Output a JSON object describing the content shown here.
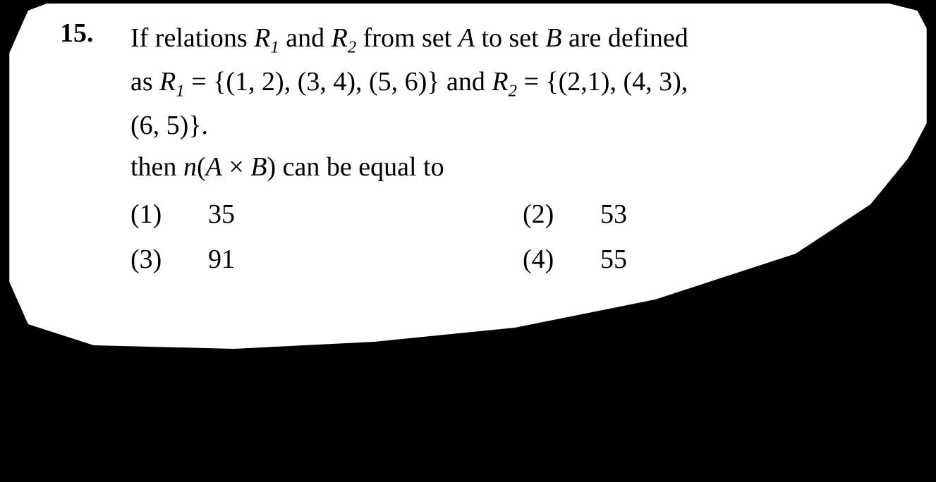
{
  "question": {
    "number": "15.",
    "line1_prefix": "If relations ",
    "r1": "R",
    "r1_sub": "1",
    "line1_and": " and ",
    "r2": "R",
    "r2_sub": "2",
    "line1_mid": " from set ",
    "setA": "A",
    "line1_toset": " to set ",
    "setB": "B",
    "line1_suffix": " are defined",
    "line2_as": "as ",
    "line2_r1eq": " = {(1, 2), (3, 4), (5, 6)} and ",
    "line2_r2eq": " = {(2,1), (4, 3),",
    "line3": "(6, 5)}.",
    "line4_then": "then ",
    "line4_n": "n",
    "line4_open": "(",
    "line4_A": "A",
    "line4_times": " × ",
    "line4_B": "B",
    "line4_close": ") can be equal to"
  },
  "options": [
    {
      "num": "(1)",
      "val": "35"
    },
    {
      "num": "(2)",
      "val": "53"
    },
    {
      "num": "(3)",
      "val": "91"
    },
    {
      "num": "(4)",
      "val": "55"
    }
  ],
  "style": {
    "background": "#000000",
    "paper": "#ffffff",
    "text_color": "#000000",
    "font_family": "Times New Roman",
    "font_size_pt": 38,
    "line_height": 1.55,
    "question_number_bold": true
  }
}
